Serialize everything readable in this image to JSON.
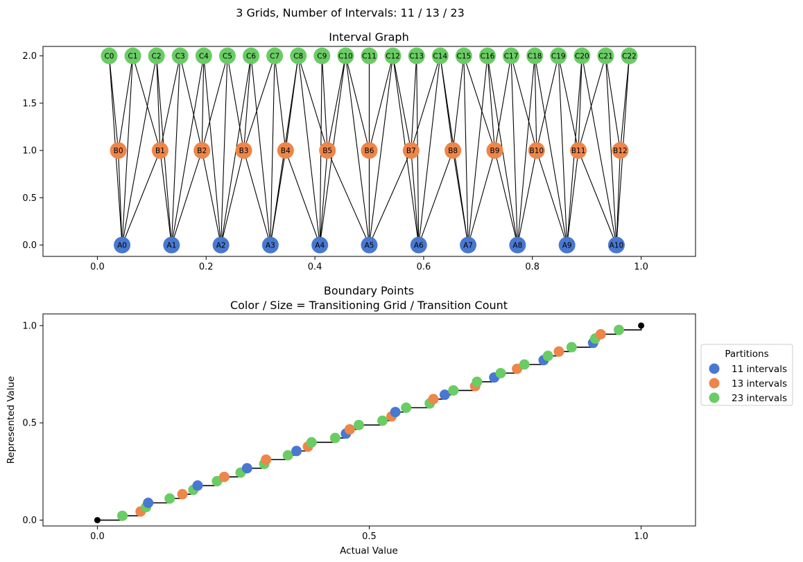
{
  "figure": {
    "suptitle": "3 Grids, Number of Intervals: 11 / 13 / 23"
  },
  "chart_data": [
    {
      "type": "network",
      "title": "Interval Graph",
      "xlim": [
        -0.1,
        1.1
      ],
      "ylim": [
        -0.12,
        2.1
      ],
      "xticks": [
        "0.0",
        "0.2",
        "0.4",
        "0.6",
        "0.8",
        "1.0"
      ],
      "yticks": [
        "0.0",
        "0.5",
        "1.0",
        "1.5",
        "2.0"
      ],
      "grid": false,
      "layers": [
        {
          "y": 0,
          "prefix": "A",
          "count": 11,
          "color": "#4878d0"
        },
        {
          "y": 1,
          "prefix": "B",
          "count": 13,
          "color": "#ee854a"
        },
        {
          "y": 2,
          "prefix": "C",
          "count": 23,
          "color": "#6acc64"
        }
      ],
      "edges": "overlapping intervals between layers"
    },
    {
      "type": "scatter",
      "title": "Boundary Points",
      "subtitle": "Color / Size = Transitioning Grid / Transition Count",
      "xlabel": "Actual Value",
      "ylabel": "Represented Value",
      "xlim": [
        -0.1,
        1.1
      ],
      "ylim": [
        -0.03,
        1.06
      ],
      "xticks": [
        "0.0",
        "0.5",
        "1.0"
      ],
      "yticks": [
        "0.0",
        "0.5",
        "1.0"
      ],
      "grid": false,
      "legend": {
        "title": "Partitions",
        "placement": "right outside",
        "entries": [
          "11 intervals",
          "13 intervals",
          "23 intervals"
        ]
      },
      "series": [
        {
          "name": "11 intervals",
          "color": "#4878d0",
          "intervals": 11
        },
        {
          "name": "13 intervals",
          "color": "#ee854a",
          "intervals": 13
        },
        {
          "name": "23 intervals",
          "color": "#6acc64",
          "intervals": 23
        }
      ],
      "step_endpoints": [
        [
          0,
          0
        ],
        [
          1,
          1
        ]
      ]
    }
  ]
}
